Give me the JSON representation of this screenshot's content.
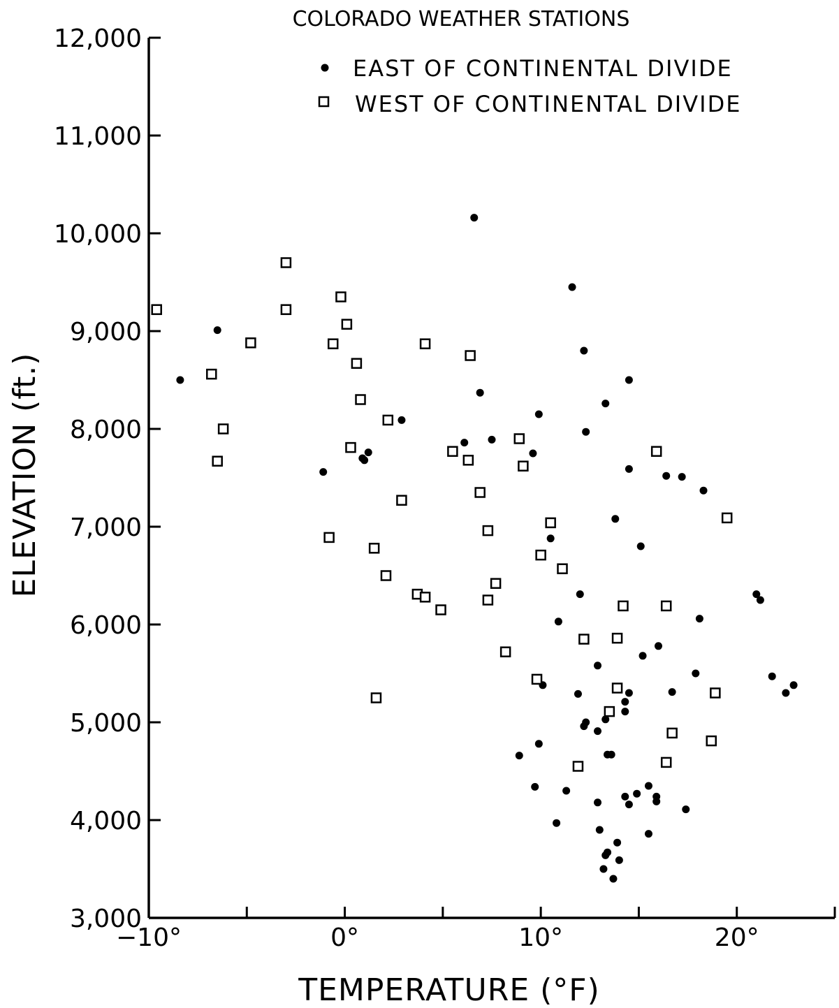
{
  "chart_data": {
    "type": "scatter",
    "title": "COLORADO WEATHER STATIONS",
    "xlabel": "TEMPERATURE (°F)",
    "ylabel": "ELEVATION (ft.)",
    "xlim": [
      -10,
      25
    ],
    "ylim": [
      3000,
      12000
    ],
    "x_ticks": [
      -10,
      -5,
      0,
      5,
      10,
      15,
      20
    ],
    "x_tick_labels": [
      "−10°",
      "0°",
      "10°",
      "20°"
    ],
    "x_tick_label_values": [
      -10,
      0,
      10,
      20
    ],
    "y_ticks": [
      3000,
      4000,
      5000,
      6000,
      7000,
      8000,
      9000,
      10000,
      11000,
      12000
    ],
    "y_tick_labels": [
      "3,000",
      "4,000",
      "5,000",
      "6,000",
      "7,000",
      "8,000",
      "9,000",
      "10,000",
      "11,000",
      "12,000"
    ],
    "grid": false,
    "legend_position": "top-right",
    "series": [
      {
        "name": "EAST OF CONTINENTAL DIVIDE",
        "marker": "filled-circle",
        "color": "#000000",
        "points": [
          [
            6.6,
            10160
          ],
          [
            11.6,
            9450
          ],
          [
            -6.5,
            9010
          ],
          [
            -8.4,
            8500
          ],
          [
            12.2,
            8800
          ],
          [
            14.5,
            8500
          ],
          [
            6.9,
            8370
          ],
          [
            13.3,
            8260
          ],
          [
            2.9,
            8090
          ],
          [
            9.9,
            8150
          ],
          [
            12.3,
            7970
          ],
          [
            6.1,
            7860
          ],
          [
            7.5,
            7890
          ],
          [
            1.2,
            7760
          ],
          [
            0.9,
            7700
          ],
          [
            1.0,
            7680
          ],
          [
            9.6,
            7750
          ],
          [
            -1.1,
            7560
          ],
          [
            14.5,
            7590
          ],
          [
            16.4,
            7520
          ],
          [
            17.2,
            7510
          ],
          [
            18.3,
            7370
          ],
          [
            13.8,
            7080
          ],
          [
            10.5,
            6880
          ],
          [
            15.1,
            6800
          ],
          [
            21.0,
            6310
          ],
          [
            21.2,
            6250
          ],
          [
            12.0,
            6310
          ],
          [
            10.9,
            6030
          ],
          [
            18.1,
            6060
          ],
          [
            16.0,
            5780
          ],
          [
            15.2,
            5680
          ],
          [
            12.9,
            5580
          ],
          [
            17.9,
            5500
          ],
          [
            21.8,
            5470
          ],
          [
            22.9,
            5380
          ],
          [
            22.5,
            5300
          ],
          [
            10.1,
            5380
          ],
          [
            11.9,
            5290
          ],
          [
            14.5,
            5300
          ],
          [
            16.7,
            5310
          ],
          [
            14.3,
            5210
          ],
          [
            14.3,
            5110
          ],
          [
            13.3,
            5030
          ],
          [
            12.3,
            5000
          ],
          [
            12.2,
            4960
          ],
          [
            12.9,
            4910
          ],
          [
            9.9,
            4780
          ],
          [
            8.9,
            4660
          ],
          [
            13.4,
            4670
          ],
          [
            13.6,
            4670
          ],
          [
            9.7,
            4340
          ],
          [
            11.3,
            4300
          ],
          [
            15.5,
            4350
          ],
          [
            14.9,
            4270
          ],
          [
            14.3,
            4240
          ],
          [
            15.9,
            4240
          ],
          [
            15.9,
            4190
          ],
          [
            14.5,
            4160
          ],
          [
            12.9,
            4180
          ],
          [
            17.4,
            4110
          ],
          [
            10.8,
            3970
          ],
          [
            13.0,
            3900
          ],
          [
            15.5,
            3860
          ],
          [
            13.9,
            3770
          ],
          [
            13.4,
            3670
          ],
          [
            13.3,
            3640
          ],
          [
            14.0,
            3590
          ],
          [
            13.2,
            3500
          ],
          [
            13.7,
            3400
          ]
        ]
      },
      {
        "name": "WEST OF CONTINENTAL DIVIDE",
        "marker": "open-square",
        "color": "#000000",
        "points": [
          [
            -9.6,
            9220
          ],
          [
            -3.0,
            9700
          ],
          [
            -3.0,
            9220
          ],
          [
            -0.2,
            9350
          ],
          [
            0.1,
            9070
          ],
          [
            -0.6,
            8870
          ],
          [
            -4.8,
            8880
          ],
          [
            4.1,
            8870
          ],
          [
            6.4,
            8750
          ],
          [
            -6.8,
            8560
          ],
          [
            0.6,
            8670
          ],
          [
            0.8,
            8300
          ],
          [
            -6.2,
            8000
          ],
          [
            2.2,
            8090
          ],
          [
            -6.5,
            7670
          ],
          [
            0.3,
            7810
          ],
          [
            5.5,
            7770
          ],
          [
            6.3,
            7680
          ],
          [
            8.9,
            7900
          ],
          [
            9.1,
            7620
          ],
          [
            15.9,
            7770
          ],
          [
            2.9,
            7270
          ],
          [
            6.9,
            7350
          ],
          [
            7.3,
            6960
          ],
          [
            10.5,
            7040
          ],
          [
            19.5,
            7090
          ],
          [
            -0.8,
            6890
          ],
          [
            1.5,
            6780
          ],
          [
            10.0,
            6710
          ],
          [
            11.1,
            6570
          ],
          [
            2.1,
            6500
          ],
          [
            7.7,
            6420
          ],
          [
            3.7,
            6310
          ],
          [
            4.1,
            6280
          ],
          [
            7.3,
            6250
          ],
          [
            4.9,
            6150
          ],
          [
            14.2,
            6190
          ],
          [
            16.4,
            6190
          ],
          [
            8.2,
            5720
          ],
          [
            12.2,
            5850
          ],
          [
            13.9,
            5860
          ],
          [
            9.8,
            5440
          ],
          [
            13.9,
            5350
          ],
          [
            18.9,
            5300
          ],
          [
            1.6,
            5250
          ],
          [
            13.5,
            5110
          ],
          [
            16.7,
            4890
          ],
          [
            18.7,
            4810
          ],
          [
            16.4,
            4590
          ],
          [
            11.9,
            4550
          ]
        ]
      }
    ]
  }
}
